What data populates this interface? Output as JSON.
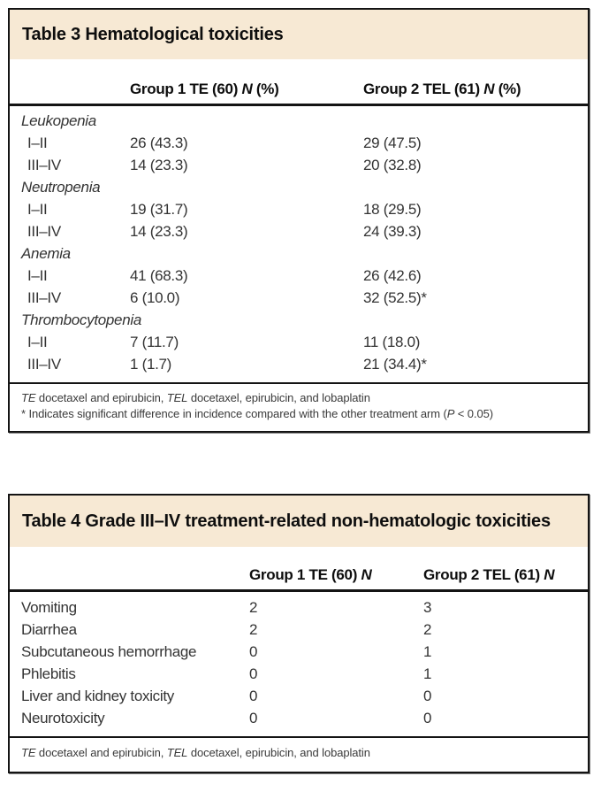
{
  "colors": {
    "title_band_background": "#f7e9d4",
    "border": "#141414",
    "page_background": "#ffffff"
  },
  "table3": {
    "title": "Table 3 Hematological toxicities",
    "columns": {
      "col1": {
        "pre": "Group 1 TE (60) ",
        "n": "N",
        "suffix": " (%)"
      },
      "col2": {
        "pre": "Group 2 TEL (61) ",
        "n": "N",
        "suffix": " (%)"
      }
    },
    "sections": [
      {
        "name": "Leukopenia",
        "rows": [
          {
            "grade": "I–II",
            "group1": "26 (43.3)",
            "group2": "29 (47.5)"
          },
          {
            "grade": "III–IV",
            "group1": "14 (23.3)",
            "group2": "20 (32.8)"
          }
        ]
      },
      {
        "name": "Neutropenia",
        "rows": [
          {
            "grade": "I–II",
            "group1": "19 (31.7)",
            "group2": "18 (29.5)"
          },
          {
            "grade": "III–IV",
            "group1": "14 (23.3)",
            "group2": "24 (39.3)"
          }
        ]
      },
      {
        "name": "Anemia",
        "rows": [
          {
            "grade": "I–II",
            "group1": "41 (68.3)",
            "group2": "26 (42.6)"
          },
          {
            "grade": "III–IV",
            "group1": "6 (10.0)",
            "group2": "32 (52.5)*"
          }
        ]
      },
      {
        "name": "Thrombocytopenia",
        "rows": [
          {
            "grade": "I–II",
            "group1": "7 (11.7)",
            "group2": "11 (18.0)"
          },
          {
            "grade": "III–IV",
            "group1": "1 (1.7)",
            "group2": "21 (34.4)*"
          }
        ]
      }
    ],
    "footnote_abbrev": {
      "te": "TE",
      "te_text": " docetaxel and epirubicin, ",
      "tel": "TEL",
      "tel_text": " docetaxel, epirubicin, and lobaplatin"
    },
    "footnote_significance": {
      "pre": "* Indicates significant difference in incidence compared with the other treatment arm (",
      "p": "P",
      "post": " < 0.05)"
    }
  },
  "table4": {
    "title": "Table 4 Grade III–IV treatment-related non-hematologic toxicities",
    "columns": {
      "col1": {
        "pre": "Group 1 TE (60) ",
        "n": "N"
      },
      "col2": {
        "pre": "Group 2 TEL (61) ",
        "n": "N"
      }
    },
    "rows": [
      {
        "label": "Vomiting",
        "group1": "2",
        "group2": "3"
      },
      {
        "label": "Diarrhea",
        "group1": "2",
        "group2": "2"
      },
      {
        "label": "Subcutaneous hemorrhage",
        "group1": "0",
        "group2": "1"
      },
      {
        "label": "Phlebitis",
        "group1": "0",
        "group2": "1"
      },
      {
        "label": "Liver and kidney toxicity",
        "group1": "0",
        "group2": "0"
      },
      {
        "label": "Neurotoxicity",
        "group1": "0",
        "group2": "0"
      }
    ],
    "footnote_abbrev": {
      "te": "TE",
      "te_text": " docetaxel and epirubicin, ",
      "tel": "TEL",
      "tel_text": " docetaxel, epirubicin, and lobaplatin"
    }
  }
}
